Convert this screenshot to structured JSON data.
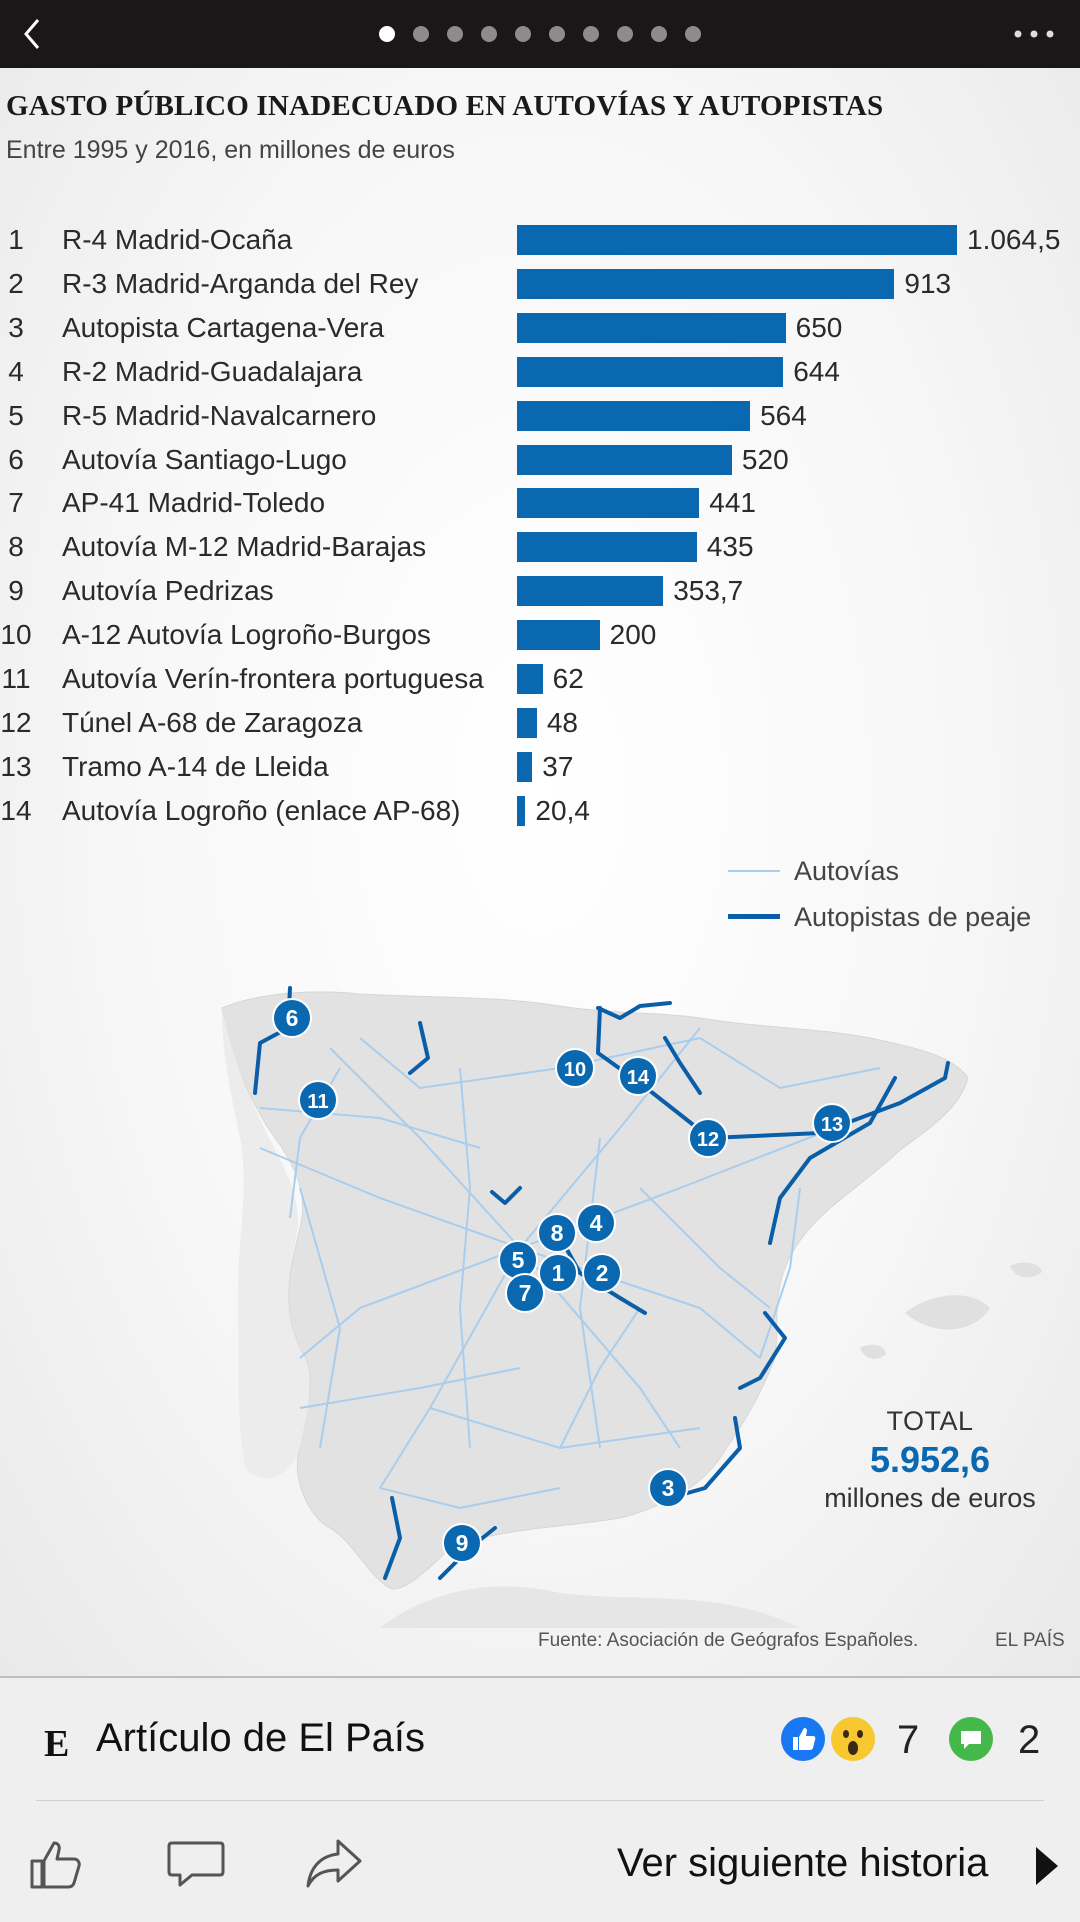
{
  "nav": {
    "page_count": 10,
    "active_index": 0
  },
  "infographic": {
    "title": "GASTO PÚBLICO INADECUADO EN AUTOVÍAS Y AUTOPISTAS",
    "subtitle": "Entre 1995 y 2016, en millones de euros",
    "legend": {
      "autovias": "Autovías",
      "autopistas": "Autopistas de peaje"
    },
    "total": {
      "label": "TOTAL",
      "value": "5.952,6",
      "unit": "millones de euros"
    },
    "source": "Fuente: Asociación de Geógrafos Españoles.",
    "brand": "EL PAÍS",
    "map_markers": [
      "1",
      "2",
      "3",
      "4",
      "5",
      "6",
      "7",
      "8",
      "9",
      "10",
      "11",
      "12",
      "13",
      "14"
    ]
  },
  "chart_data": {
    "type": "bar",
    "orientation": "horizontal",
    "title": "GASTO PÚBLICO INADECUADO EN AUTOVÍAS Y AUTOPISTAS",
    "subtitle": "Entre 1995 y 2016, en millones de euros",
    "ranks": [
      "1",
      "2",
      "3",
      "4",
      "5",
      "6",
      "7",
      "8",
      "9",
      "10",
      "11",
      "12",
      "13",
      "14"
    ],
    "categories": [
      "R-4 Madrid-Ocaña",
      "R-3 Madrid-Arganda del Rey",
      "Autopista Cartagena-Vera",
      "R-2 Madrid-Guadalajara",
      "R-5 Madrid-Navalcarnero",
      "Autovía Santiago-Lugo",
      "AP-41 Madrid-Toledo",
      "Autovía M-12 Madrid-Barajas",
      "Autovía Pedrizas",
      "A-12 Autovía Logroño-Burgos",
      "Autovía Verín-frontera portuguesa",
      "Túnel A-68 de Zaragoza",
      "Tramo A-14 de Lleida",
      "Autovía Logroño (enlace AP-68)"
    ],
    "values": [
      1064.5,
      913,
      650,
      644,
      564,
      520,
      441,
      435,
      353.7,
      200,
      62,
      48,
      37,
      20.4
    ],
    "value_labels": [
      "1.064,5",
      "913",
      "650",
      "644",
      "564",
      "520",
      "441",
      "435",
      "353,7",
      "200",
      "62",
      "48",
      "37",
      "20,4"
    ],
    "color": "#0a68b0",
    "grid": false
  },
  "colors": {
    "accent": "#0a68b0",
    "autovia_line": "#a9cdec",
    "autopista_line": "#0a5ea8"
  },
  "footer": {
    "publisher_icon": "El País E logo",
    "publisher_logo_letter": "E",
    "article_title": "Artículo de El País",
    "reaction_count": "7",
    "comment_count": "2",
    "next_story": "Ver siguiente historia"
  }
}
